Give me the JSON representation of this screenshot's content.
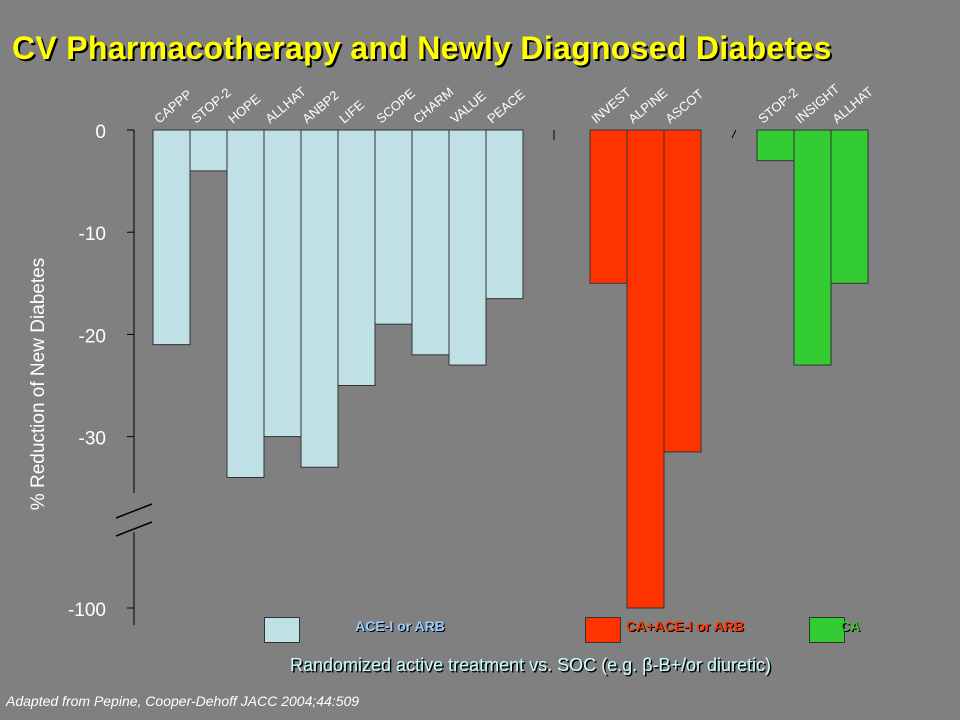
{
  "title": "CV Pharmacotherapy and Newly Diagnosed Diabetes",
  "subtitle": "Randomized active treatment vs. SOC (e.g. β-B+/or diuretic)",
  "source": "Adapted from Pepine, Cooper-Dehoff JACC 2004;44:509",
  "chart_data": {
    "type": "bar",
    "ylabel": "% Reduction of New Diabetes",
    "yticks": [
      "0",
      "-10",
      "-20",
      "-30",
      "-100"
    ],
    "axis_break": "between -30 and -100",
    "grid": false,
    "legend_position": "bottom",
    "series": [
      {
        "name": "ACE-I or ARB",
        "color": "#bfe0e4",
        "label_color": "#99ccff",
        "categories": [
          "CAPPP",
          "STOP-2",
          "HOPE",
          "ALLHAT",
          "ANBP2",
          "LIFE",
          "SCOPE",
          "CHARM",
          "VALUE",
          "PEACE"
        ],
        "values": [
          -21,
          -4,
          -34,
          -30,
          -33,
          -25,
          -19,
          -22,
          -23,
          -16.5
        ]
      },
      {
        "name": "CA+ACE-I or ARB",
        "color": "#ff3300",
        "label_color": "#ff3300",
        "categories": [
          "INVEST",
          "ALPINE",
          "ASCOT"
        ],
        "values": [
          -15,
          -100,
          -31.5
        ]
      },
      {
        "name": "CA",
        "color": "#33cc33",
        "label_color": "#33cc33",
        "categories": [
          "STOP-2",
          "INSIGHT",
          "ALLHAT"
        ],
        "values": [
          -3,
          -23,
          -15
        ]
      }
    ]
  }
}
